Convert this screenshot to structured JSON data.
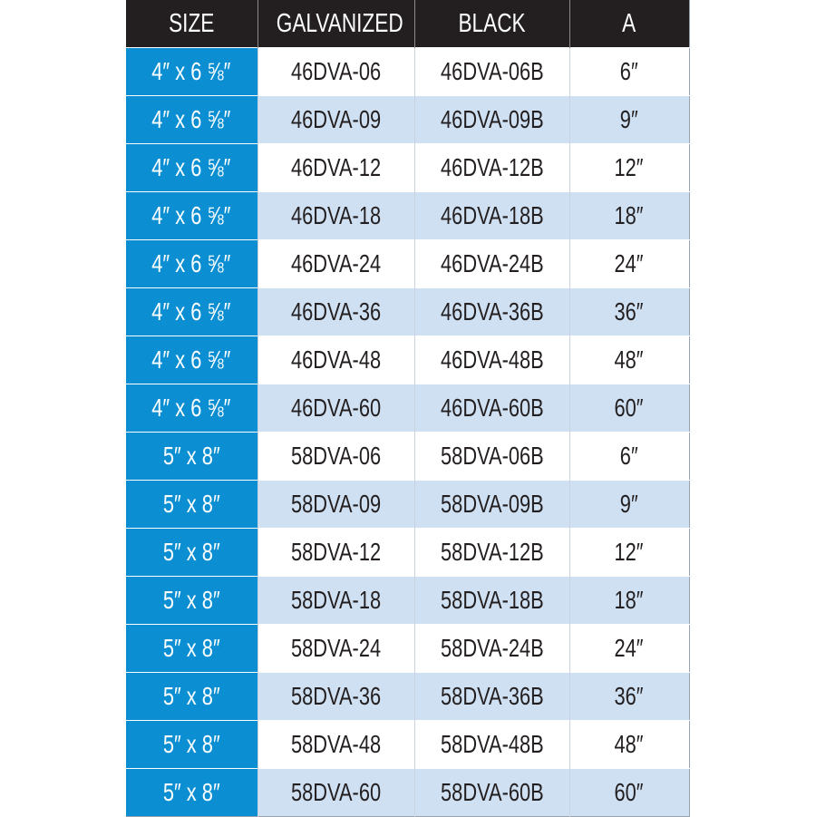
{
  "headers": [
    "SIZE",
    "GALVANIZED",
    "BLACK",
    "A"
  ],
  "colors": {
    "header_bg": "#231f20",
    "size_bg": "#0b8fd2",
    "alt_row_bg": "#cfe0f2"
  },
  "rows": [
    [
      "4″ x 6 ⅝″",
      "46DVA-06",
      "46DVA-06B",
      "6″"
    ],
    [
      "4″ x 6 ⅝″",
      "46DVA-09",
      "46DVA-09B",
      "9″"
    ],
    [
      "4″ x 6 ⅝″",
      "46DVA-12",
      "46DVA-12B",
      "12″"
    ],
    [
      "4″ x 6 ⅝″",
      "46DVA-18",
      "46DVA-18B",
      "18″"
    ],
    [
      "4″ x 6 ⅝″",
      "46DVA-24",
      "46DVA-24B",
      "24″"
    ],
    [
      "4″ x 6 ⅝″",
      "46DVA-36",
      "46DVA-36B",
      "36″"
    ],
    [
      "4″ x 6 ⅝″",
      "46DVA-48",
      "46DVA-48B",
      "48″"
    ],
    [
      "4″ x 6 ⅝″",
      "46DVA-60",
      "46DVA-60B",
      "60″"
    ],
    [
      "5″ x 8″",
      "58DVA-06",
      "58DVA-06B",
      "6″"
    ],
    [
      "5″ x 8″",
      "58DVA-09",
      "58DVA-09B",
      "9″"
    ],
    [
      "5″ x 8″",
      "58DVA-12",
      "58DVA-12B",
      "12″"
    ],
    [
      "5″ x 8″",
      "58DVA-18",
      "58DVA-18B",
      "18″"
    ],
    [
      "5″ x 8″",
      "58DVA-24",
      "58DVA-24B",
      "24″"
    ],
    [
      "5″ x 8″",
      "58DVA-36",
      "58DVA-36B",
      "36″"
    ],
    [
      "5″ x 8″",
      "58DVA-48",
      "58DVA-48B",
      "48″"
    ],
    [
      "5″ x 8″",
      "58DVA-60",
      "58DVA-60B",
      "60″"
    ]
  ]
}
